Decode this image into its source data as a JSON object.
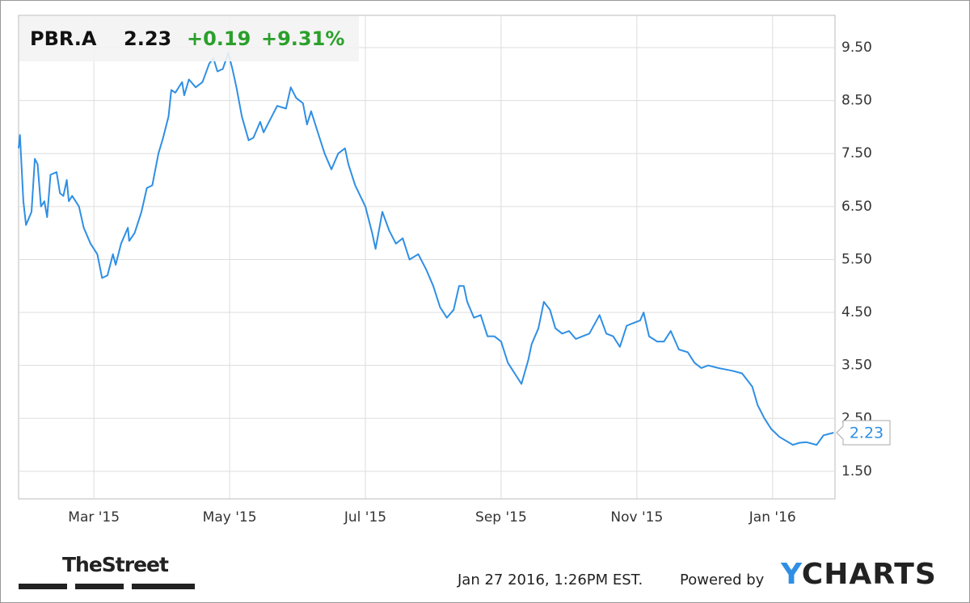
{
  "header": {
    "ticker": "PBR.A",
    "price": "2.23",
    "change": "+0.19",
    "change_percent": "+9.31%"
  },
  "chart_data": {
    "type": "line",
    "x": [
      0.89,
      0.91,
      0.96,
      1.0,
      1.08,
      1.13,
      1.17,
      1.22,
      1.27,
      1.31,
      1.36,
      1.45,
      1.5,
      1.55,
      1.6,
      1.63,
      1.68,
      1.78,
      1.85,
      1.95,
      2.05,
      2.12,
      2.2,
      2.28,
      2.32,
      2.4,
      2.5,
      2.52,
      2.6,
      2.7,
      2.78,
      2.86,
      2.95,
      3.02,
      3.1,
      3.14,
      3.2,
      3.3,
      3.33,
      3.4,
      3.5,
      3.6,
      3.7,
      3.76,
      3.82,
      3.9,
      3.98,
      4.04,
      4.1,
      4.18,
      4.28,
      4.35,
      4.45,
      4.5,
      4.58,
      4.7,
      4.83,
      4.9,
      4.98,
      5.08,
      5.14,
      5.2,
      5.3,
      5.4,
      5.5,
      5.6,
      5.7,
      5.75,
      5.85,
      6.0,
      6.1,
      6.15,
      6.25,
      6.35,
      6.45,
      6.55,
      6.65,
      6.78,
      6.9,
      7.0,
      7.1,
      7.2,
      7.3,
      7.38,
      7.45,
      7.5,
      7.6,
      7.7,
      7.8,
      7.9,
      8.0,
      8.1,
      8.2,
      8.3,
      8.4,
      8.45,
      8.55,
      8.63,
      8.72,
      8.8,
      8.9,
      9.0,
      9.1,
      9.2,
      9.3,
      9.45,
      9.55,
      9.65,
      9.75,
      9.85,
      9.95,
      10.05,
      10.1,
      10.18,
      10.3,
      10.4,
      10.5,
      10.62,
      10.75,
      10.85,
      10.95,
      11.05,
      11.2,
      11.4,
      11.55,
      11.7,
      11.78,
      11.88,
      11.98,
      12.1,
      12.3,
      12.4,
      12.5,
      12.65,
      12.75,
      12.9
    ],
    "series": [
      {
        "color": "#2f8fe4",
        "values": [
          7.6,
          7.85,
          6.6,
          6.15,
          6.4,
          7.4,
          7.3,
          6.5,
          6.6,
          6.3,
          7.1,
          7.15,
          6.75,
          6.7,
          7.0,
          6.6,
          6.7,
          6.5,
          6.1,
          5.8,
          5.6,
          5.15,
          5.2,
          5.6,
          5.4,
          5.8,
          6.1,
          5.85,
          6.0,
          6.4,
          6.85,
          6.9,
          7.5,
          7.8,
          8.2,
          8.7,
          8.65,
          8.85,
          8.6,
          8.9,
          8.75,
          8.85,
          9.2,
          9.3,
          9.05,
          9.1,
          9.4,
          9.1,
          8.75,
          8.2,
          7.75,
          7.8,
          8.1,
          7.9,
          8.1,
          8.4,
          8.35,
          8.75,
          8.55,
          8.45,
          8.05,
          8.3,
          7.9,
          7.5,
          7.2,
          7.5,
          7.6,
          7.3,
          6.9,
          6.5,
          6.0,
          5.7,
          6.4,
          6.05,
          5.8,
          5.9,
          5.5,
          5.6,
          5.3,
          5.0,
          4.6,
          4.4,
          4.55,
          5.0,
          5.0,
          4.7,
          4.4,
          4.45,
          4.05,
          4.05,
          3.95,
          3.55,
          3.35,
          3.15,
          3.6,
          3.9,
          4.2,
          4.7,
          4.55,
          4.2,
          4.1,
          4.15,
          4.0,
          4.05,
          4.1,
          4.45,
          4.1,
          4.05,
          3.85,
          4.25,
          4.3,
          4.35,
          4.5,
          4.05,
          3.95,
          3.95,
          4.15,
          3.8,
          3.75,
          3.55,
          3.45,
          3.5,
          3.45,
          3.4,
          3.35,
          3.1,
          2.75,
          2.5,
          2.3,
          2.15,
          2.0,
          2.04,
          2.05,
          2.0,
          2.18,
          2.23
        ]
      }
    ],
    "xlim": [
      0.89,
      12.92
    ],
    "xticks": [
      {
        "value": 2,
        "label": "Mar '15"
      },
      {
        "value": 4,
        "label": "May '15"
      },
      {
        "value": 6,
        "label": "Jul '15"
      },
      {
        "value": 8,
        "label": "Sep '15"
      },
      {
        "value": 10,
        "label": "Nov '15"
      },
      {
        "value": 12,
        "label": "Jan '16"
      }
    ],
    "ylim": [
      0.98,
      10.11
    ],
    "yticks": [
      {
        "value": 1.5,
        "label": "1.50"
      },
      {
        "value": 2.5,
        "label": "2.50"
      },
      {
        "value": 3.5,
        "label": "3.50"
      },
      {
        "value": 4.5,
        "label": "4.50"
      },
      {
        "value": 5.5,
        "label": "5.50"
      },
      {
        "value": 6.5,
        "label": "6.50"
      },
      {
        "value": 7.5,
        "label": "7.50"
      },
      {
        "value": 8.5,
        "label": "8.50"
      },
      {
        "value": 9.5,
        "label": "9.50"
      }
    ],
    "grid": true
  },
  "footer": {
    "source_logo": "TheStreet",
    "timestamp": "Jan 27 2016, 1:26PM EST.",
    "powered_by": "Powered by",
    "brand": "YCHARTS"
  }
}
